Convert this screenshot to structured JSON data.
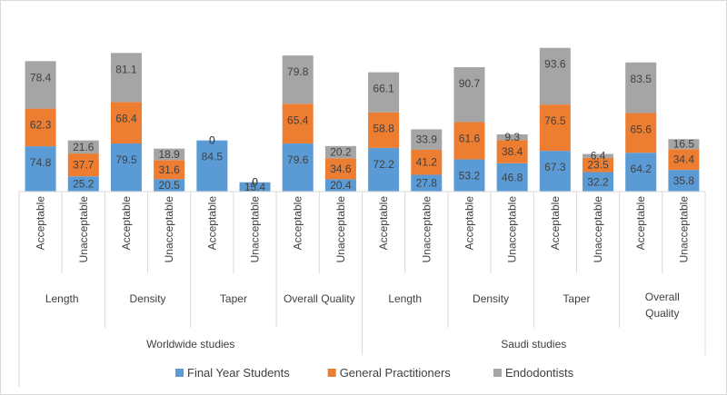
{
  "chart_data": {
    "type": "bar",
    "stacked": true,
    "title": "",
    "xlabel": "",
    "ylabel": "",
    "legend_position": "bottom",
    "grid": false,
    "groups": [
      {
        "name": "Worldwide studies",
        "categories": [
          {
            "name": "Length",
            "subcategories": [
              "Acceptable",
              "Unacceptable"
            ]
          },
          {
            "name": "Density",
            "subcategories": [
              "Acceptable",
              "Unacceptable"
            ]
          },
          {
            "name": "Taper",
            "subcategories": [
              "Acceptable",
              "Unacceptable"
            ]
          },
          {
            "name": "Overall Quality",
            "subcategories": [
              "Acceptable",
              "Unacceptable"
            ]
          }
        ]
      },
      {
        "name": "Saudi studies",
        "categories": [
          {
            "name": "Length",
            "subcategories": [
              "Acceptable",
              "Unacceptable"
            ]
          },
          {
            "name": "Density",
            "subcategories": [
              "Acceptable",
              "Unacceptable"
            ]
          },
          {
            "name": "Taper",
            "subcategories": [
              "Acceptable",
              "Unacceptable"
            ]
          },
          {
            "name": "Overall",
            "name_line2": "Quality",
            "subcategories": [
              "Acceptable",
              "Unacceptable"
            ]
          }
        ]
      }
    ],
    "series": [
      {
        "name": "Final Year Students",
        "color": "#5b9bd5",
        "values": [
          74.8,
          25.2,
          79.5,
          20.5,
          84.5,
          15.4,
          79.6,
          20.4,
          72.2,
          27.8,
          53.2,
          46.8,
          67.3,
          32.2,
          64.2,
          35.8
        ]
      },
      {
        "name": "General Practitioners",
        "color": "#ed7d31",
        "values": [
          62.3,
          37.7,
          68.4,
          31.6,
          0,
          0,
          65.4,
          34.6,
          58.8,
          41.2,
          61.6,
          38.4,
          76.5,
          23.5,
          65.6,
          34.4
        ]
      },
      {
        "name": "Endodontists",
        "color": "#a5a5a5",
        "values": [
          78.4,
          21.6,
          81.1,
          18.9,
          0,
          0,
          79.8,
          20.2,
          66.1,
          33.9,
          90.7,
          9.3,
          93.6,
          6.4,
          83.5,
          16.5
        ]
      }
    ],
    "ylim": [
      0,
      300
    ]
  }
}
